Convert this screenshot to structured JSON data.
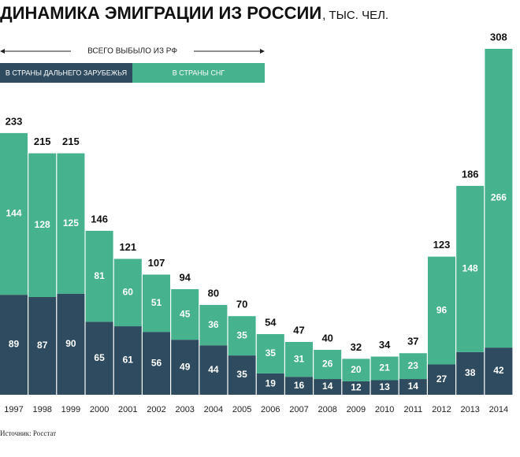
{
  "chart_data": {
    "type": "stacked_bar",
    "title": "ДИНАМИКА ЭМИГРАЦИИ ИЗ РОССИИ",
    "subtitle": ", ТЫС. ЧЕЛ.",
    "total_label": "ВСЕГО ВЫБЫЛО ИЗ РФ",
    "source": "Источник: Росстат",
    "categories": [
      "1997",
      "1998",
      "1999",
      "2000",
      "2001",
      "2002",
      "2003",
      "2004",
      "2005",
      "2006",
      "2007",
      "2008",
      "2009",
      "2010",
      "2011",
      "2012",
      "2013",
      "2014"
    ],
    "series": [
      {
        "name": "В СТРАНЫ ДАЛЬНЕГО ЗАРУБЕЖЬЯ",
        "color": "#2e4b5f",
        "values": [
          89,
          87,
          90,
          65,
          61,
          56,
          49,
          44,
          35,
          19,
          16,
          14,
          12,
          13,
          14,
          27,
          38,
          42
        ]
      },
      {
        "name": "В СТРАНЫ СНГ",
        "color": "#46b28e",
        "values": [
          144,
          128,
          125,
          81,
          60,
          51,
          45,
          36,
          35,
          35,
          31,
          26,
          20,
          21,
          23,
          96,
          148,
          266
        ]
      }
    ],
    "totals": [
      233,
      215,
      215,
      146,
      121,
      107,
      94,
      80,
      70,
      54,
      47,
      40,
      32,
      34,
      37,
      123,
      186,
      308
    ]
  }
}
